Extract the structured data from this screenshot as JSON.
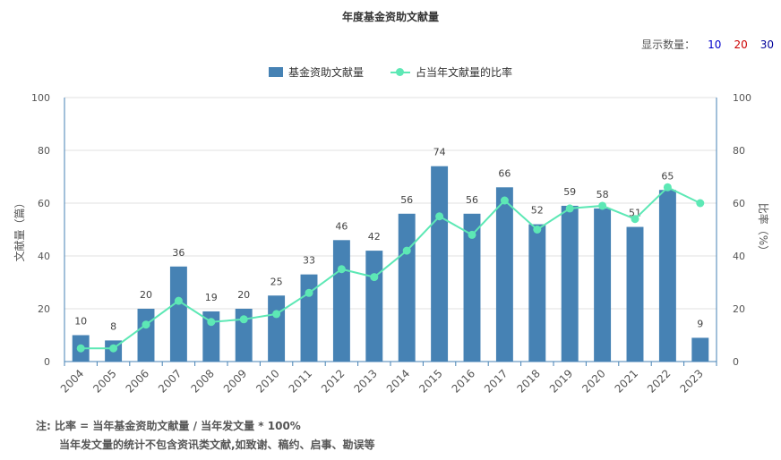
{
  "title": "年度基金资助文献量",
  "count_selector": {
    "label": "显示数量：",
    "options": [
      {
        "label": "10",
        "color": "#0000cc"
      },
      {
        "label": "20",
        "color": "#cc0000"
      },
      {
        "label": "30",
        "color": "#000099"
      }
    ]
  },
  "legend": {
    "bar_label": "基金资助文献量",
    "line_label": "占当年文献量的比率"
  },
  "notes": {
    "line1": "注:   比率 = 当年基金资助文献量 / 当年发文量 * 100%",
    "line2": "当年发文量的统计不包含资讯类文献,如致谢、稿约、启事、勘误等"
  },
  "colors": {
    "bar": "#4682b4",
    "line": "#5de8b5",
    "axis": "#4682b4",
    "grid": "#e0e0e0"
  },
  "chart_data": {
    "type": "bar",
    "title": "年度基金资助文献量",
    "categories": [
      "2004",
      "2005",
      "2006",
      "2007",
      "2008",
      "2009",
      "2010",
      "2011",
      "2012",
      "2013",
      "2014",
      "2015",
      "2016",
      "2017",
      "2018",
      "2019",
      "2020",
      "2021",
      "2022",
      "2023"
    ],
    "series": [
      {
        "name": "基金资助文献量",
        "type": "bar",
        "axis": "left",
        "values": [
          10,
          8,
          20,
          36,
          19,
          20,
          25,
          33,
          46,
          42,
          56,
          74,
          56,
          66,
          52,
          59,
          58,
          51,
          65,
          9
        ],
        "data_labels": [
          "10",
          "8",
          "20",
          "36",
          "19",
          "20",
          "25",
          "33",
          "46",
          "42",
          "56",
          "74",
          "56",
          "66",
          "52",
          "59",
          "58",
          "51",
          "65",
          "9"
        ]
      },
      {
        "name": "占当年文献量的比率",
        "type": "line",
        "axis": "right",
        "values": [
          5,
          5,
          14,
          23,
          15,
          16,
          18,
          26,
          35,
          32,
          42,
          55,
          48,
          61,
          50,
          58,
          59,
          54,
          66,
          60
        ]
      }
    ],
    "ylabel_left": "文献量（篇）",
    "ylabel_right": "比率（%）",
    "ylim_left": [
      0,
      100
    ],
    "ylim_right": [
      0,
      100
    ],
    "yticks_left": [
      "0",
      "20",
      "40",
      "60",
      "80",
      "100"
    ],
    "yticks_right": [
      "0",
      "20",
      "40",
      "60",
      "80",
      "100"
    ],
    "grid": true,
    "legend_position": "top-center"
  }
}
